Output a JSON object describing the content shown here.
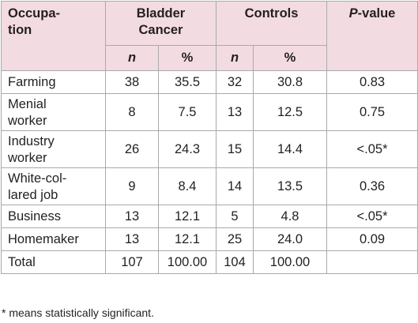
{
  "table": {
    "headers": {
      "occupation": "Occupa-\ntion",
      "group_a": "Bladder\nCancer",
      "group_b": "Controls",
      "p_value": "P-value",
      "n": "n",
      "percent": "%"
    },
    "rows": [
      {
        "occupation": "Farming",
        "a_n": "38",
        "a_pct": "35.5",
        "b_n": "32",
        "b_pct": "30.8",
        "p": "0.83"
      },
      {
        "occupation": "Menial\nworker",
        "a_n": "8",
        "a_pct": "7.5",
        "b_n": "13",
        "b_pct": "12.5",
        "p": "0.75"
      },
      {
        "occupation": "Industry\nworker",
        "a_n": "26",
        "a_pct": "24.3",
        "b_n": "15",
        "b_pct": "14.4",
        "p": "<.05*"
      },
      {
        "occupation": "White-col-\nlared job",
        "a_n": "9",
        "a_pct": "8.4",
        "b_n": "14",
        "b_pct": "13.5",
        "p": "0.36"
      },
      {
        "occupation": "Business",
        "a_n": "13",
        "a_pct": "12.1",
        "b_n": "5",
        "b_pct": "4.8",
        "p": "<.05*"
      },
      {
        "occupation": "Homemaker",
        "a_n": "13",
        "a_pct": "12.1",
        "b_n": "25",
        "b_pct": "24.0",
        "p": "0.09"
      },
      {
        "occupation": "Total",
        "a_n": "107",
        "a_pct": "100.00",
        "b_n": "104",
        "b_pct": "100.00",
        "p": ""
      }
    ]
  },
  "footnote": "* means statistically significant."
}
